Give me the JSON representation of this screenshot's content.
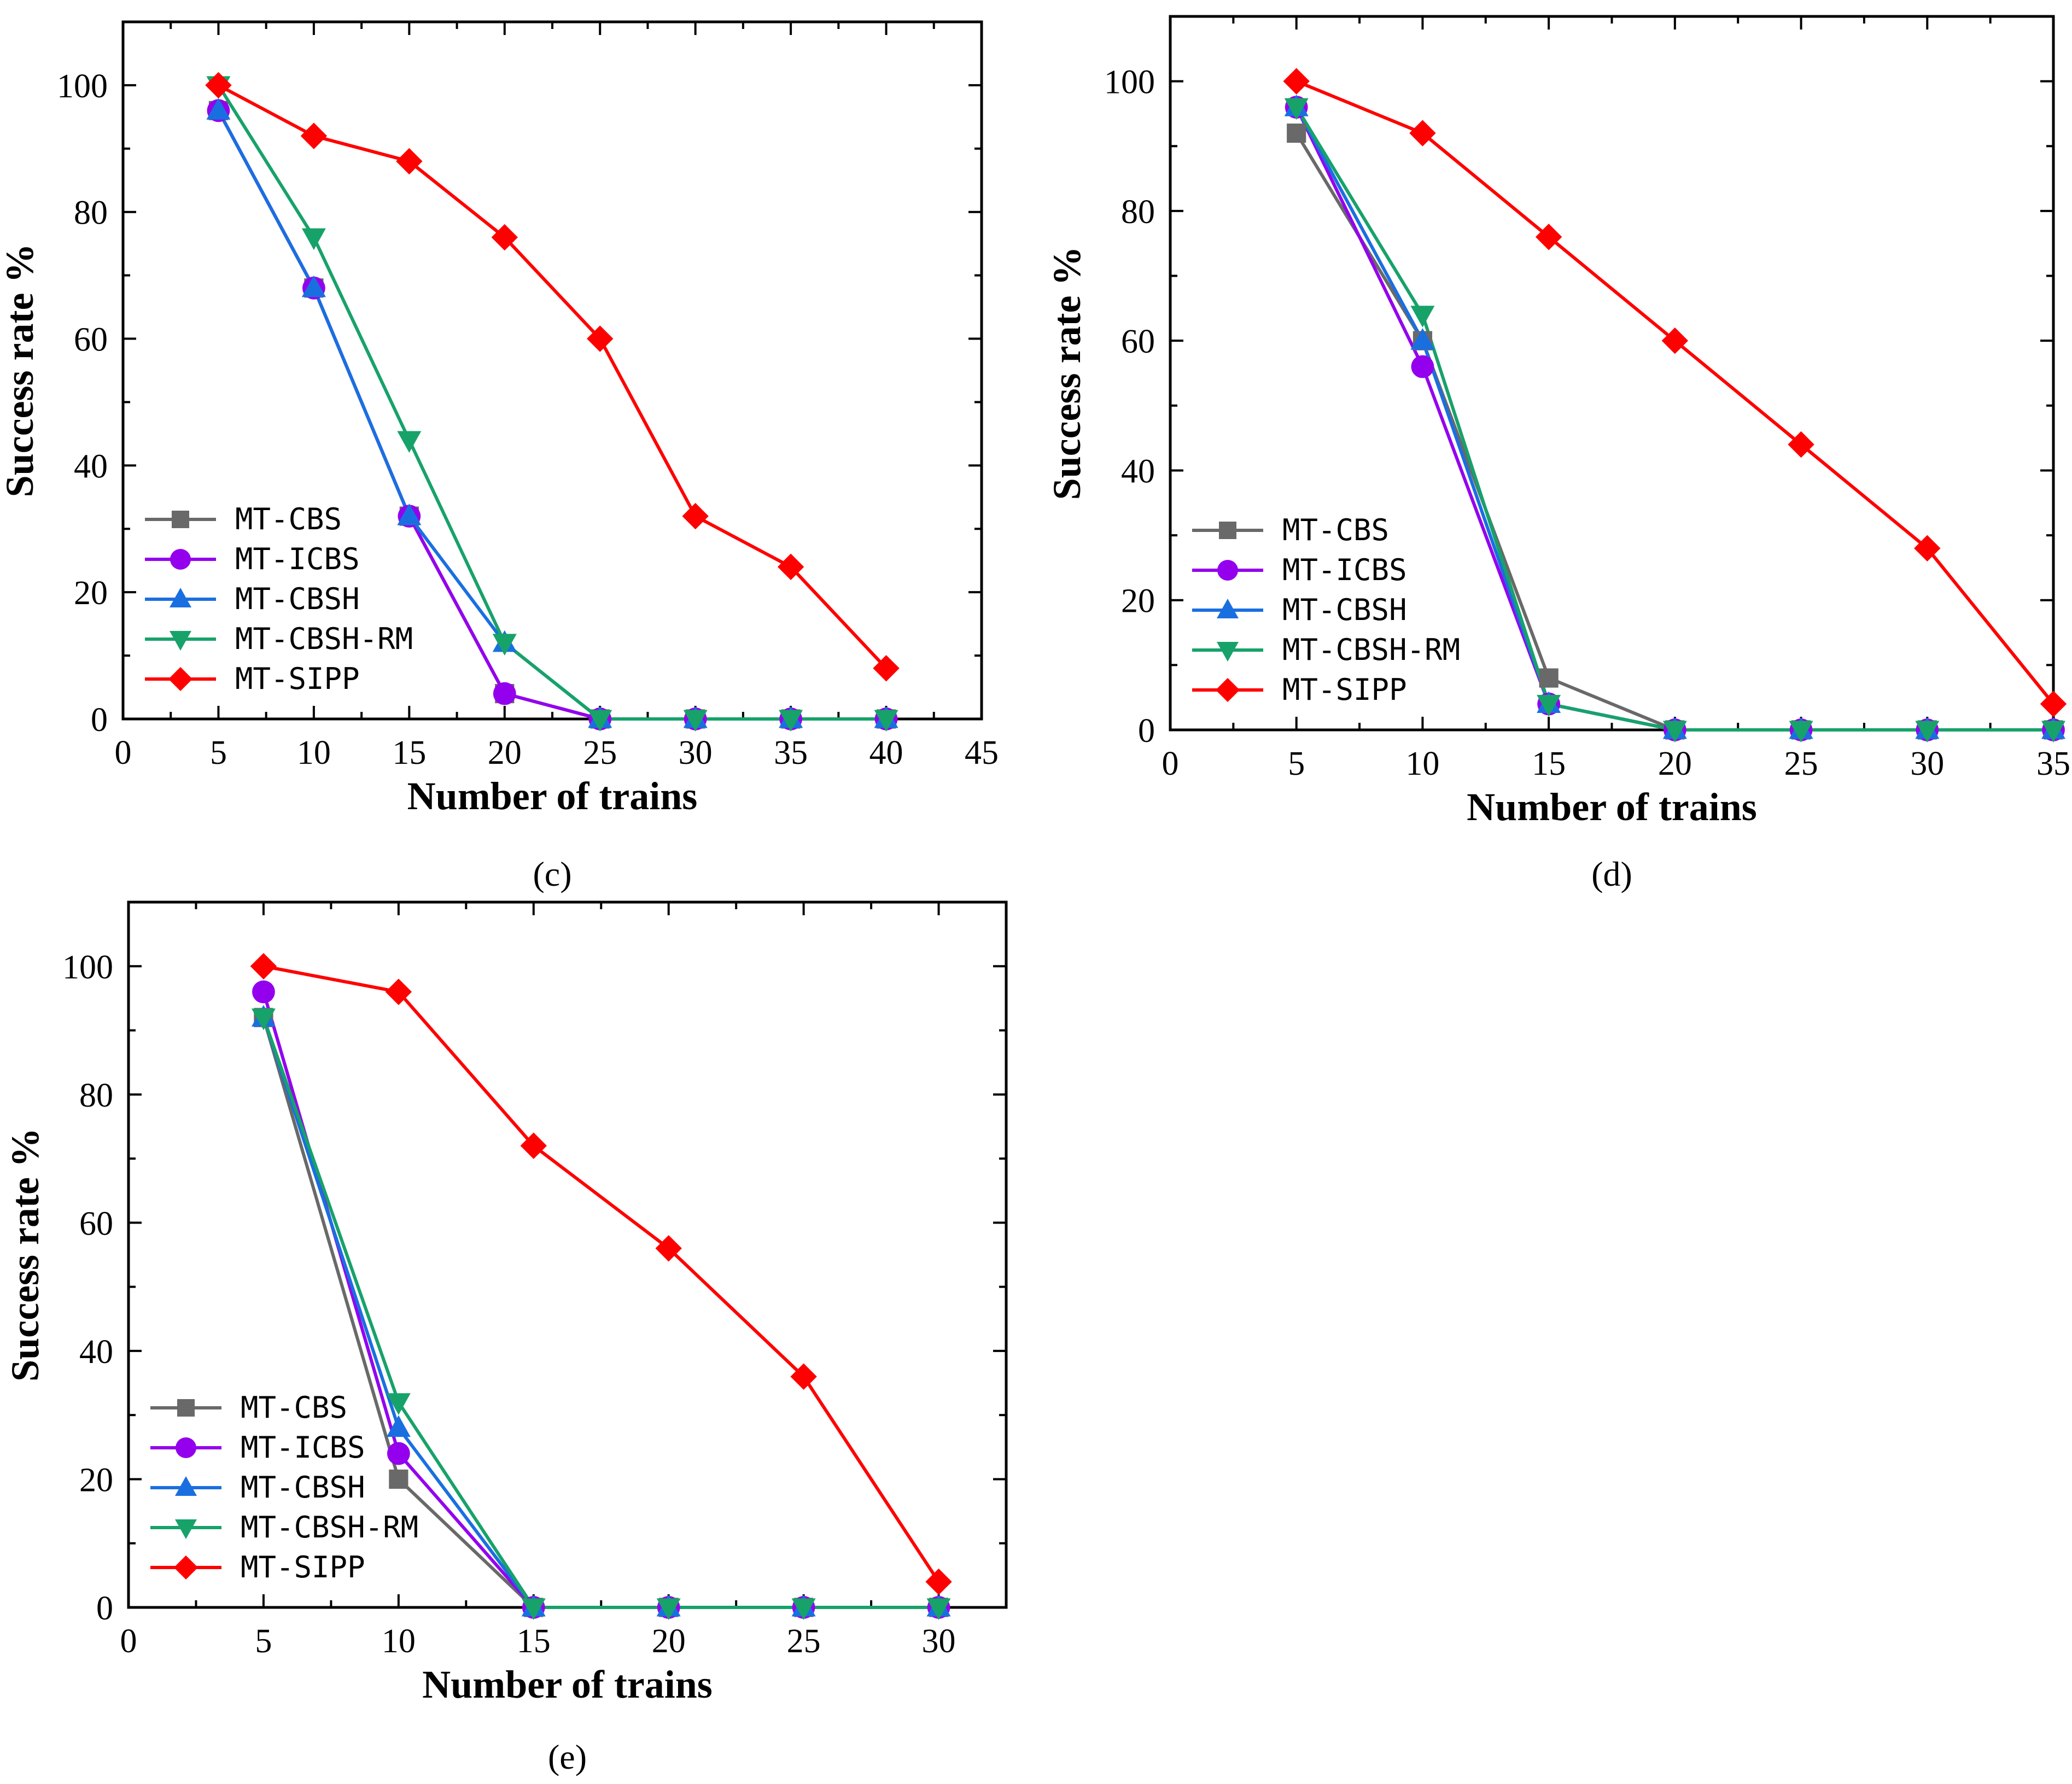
{
  "series_styles": [
    {
      "name": "MT-CBS",
      "color": "#696969",
      "marker": "square"
    },
    {
      "name": "MT-ICBS",
      "color": "#9400ee",
      "marker": "circle"
    },
    {
      "name": "MT-CBSH",
      "color": "#1a6fe0",
      "marker": "triangle-up"
    },
    {
      "name": "MT-CBSH-RM",
      "color": "#17a26a",
      "marker": "triangle-down"
    },
    {
      "name": "MT-SIPP",
      "color": "#ff0000",
      "marker": "diamond"
    }
  ],
  "chart_data": [
    {
      "type": "line",
      "panel_label": "(c)",
      "xlabel": "Number of trains",
      "ylabel": "Success rate %",
      "xlim": [
        0,
        45
      ],
      "ylim": [
        0,
        110
      ],
      "xticks": [
        0,
        5,
        10,
        15,
        20,
        25,
        30,
        35,
        40,
        45
      ],
      "yticks": [
        0,
        20,
        40,
        60,
        80,
        100
      ],
      "legend_position": "lower-left",
      "x": [
        5,
        10,
        15,
        20,
        25,
        30,
        35,
        40
      ],
      "series": [
        {
          "name": "MT-CBS",
          "values": [
            96,
            68,
            32,
            4,
            0,
            0,
            0,
            0
          ]
        },
        {
          "name": "MT-ICBS",
          "values": [
            96,
            68,
            32,
            4,
            0,
            0,
            0,
            0
          ]
        },
        {
          "name": "MT-CBSH",
          "values": [
            96,
            68,
            32,
            12,
            0,
            0,
            0,
            0
          ]
        },
        {
          "name": "MT-CBSH-RM",
          "values": [
            100,
            76,
            44,
            12,
            0,
            0,
            0,
            0
          ]
        },
        {
          "name": "MT-SIPP",
          "values": [
            100,
            92,
            88,
            76,
            60,
            32,
            24,
            8
          ]
        }
      ]
    },
    {
      "type": "line",
      "panel_label": "(d)",
      "xlabel": "Number of trains",
      "ylabel": "Success rate %",
      "xlim": [
        0,
        35
      ],
      "ylim": [
        0,
        110
      ],
      "xticks": [
        0,
        5,
        10,
        15,
        20,
        25,
        30,
        35
      ],
      "yticks": [
        0,
        20,
        40,
        60,
        80,
        100
      ],
      "legend_position": "lower-left",
      "x": [
        5,
        10,
        15,
        20,
        25,
        30,
        35
      ],
      "series": [
        {
          "name": "MT-CBS",
          "values": [
            92,
            60,
            8,
            0,
            0,
            0,
            0
          ]
        },
        {
          "name": "MT-ICBS",
          "values": [
            96,
            56,
            4,
            0,
            0,
            0,
            0
          ]
        },
        {
          "name": "MT-CBSH",
          "values": [
            96,
            60,
            4,
            0,
            0,
            0,
            0
          ]
        },
        {
          "name": "MT-CBSH-RM",
          "values": [
            96,
            64,
            4,
            0,
            0,
            0,
            0
          ]
        },
        {
          "name": "MT-SIPP",
          "values": [
            100,
            92,
            76,
            60,
            44,
            28,
            4
          ]
        }
      ]
    },
    {
      "type": "line",
      "panel_label": "(e)",
      "xlabel": "Number of trains",
      "ylabel": "Success rate %",
      "xlim": [
        0,
        32.5
      ],
      "ylim": [
        0,
        110
      ],
      "xticks": [
        0,
        5,
        10,
        15,
        20,
        25,
        30
      ],
      "yticks": [
        0,
        20,
        40,
        60,
        80,
        100
      ],
      "legend_position": "lower-left",
      "x": [
        5,
        10,
        15,
        20,
        25,
        30
      ],
      "series": [
        {
          "name": "MT-CBS",
          "values": [
            92,
            20,
            0,
            0,
            0,
            0
          ]
        },
        {
          "name": "MT-ICBS",
          "values": [
            96,
            24,
            0,
            0,
            0,
            0
          ]
        },
        {
          "name": "MT-CBSH",
          "values": [
            92,
            28,
            0,
            0,
            0,
            0
          ]
        },
        {
          "name": "MT-CBSH-RM",
          "values": [
            92,
            32,
            0,
            0,
            0,
            0
          ]
        },
        {
          "name": "MT-SIPP",
          "values": [
            100,
            96,
            72,
            56,
            36,
            4
          ]
        }
      ]
    }
  ]
}
